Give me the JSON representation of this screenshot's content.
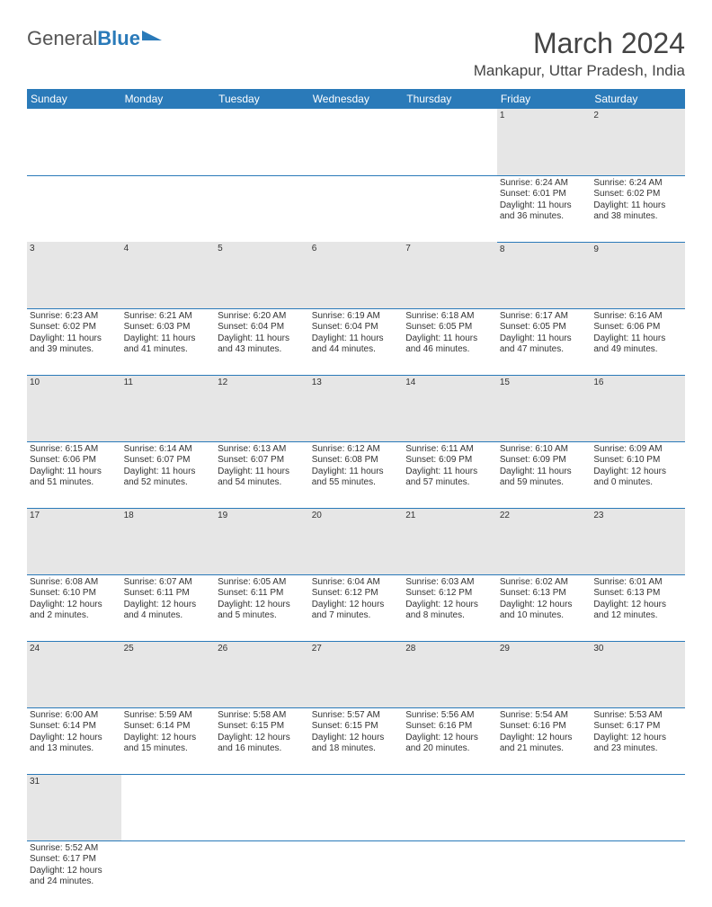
{
  "logo": {
    "text1": "General",
    "text2": "Blue"
  },
  "title": "March 2024",
  "location": "Mankapur, Uttar Pradesh, India",
  "colors": {
    "header_bg": "#2a7ab9",
    "header_fg": "#ffffff",
    "daynum_bg": "#e6e6e6",
    "cell_border": "#2a7ab9",
    "text": "#333333"
  },
  "daysOfWeek": [
    "Sunday",
    "Monday",
    "Tuesday",
    "Wednesday",
    "Thursday",
    "Friday",
    "Saturday"
  ],
  "startWeekday": 5,
  "days": [
    {
      "n": 1,
      "sr": "6:24 AM",
      "ss": "6:01 PM",
      "dl": "11 hours and 36 minutes."
    },
    {
      "n": 2,
      "sr": "6:24 AM",
      "ss": "6:02 PM",
      "dl": "11 hours and 38 minutes."
    },
    {
      "n": 3,
      "sr": "6:23 AM",
      "ss": "6:02 PM",
      "dl": "11 hours and 39 minutes."
    },
    {
      "n": 4,
      "sr": "6:21 AM",
      "ss": "6:03 PM",
      "dl": "11 hours and 41 minutes."
    },
    {
      "n": 5,
      "sr": "6:20 AM",
      "ss": "6:04 PM",
      "dl": "11 hours and 43 minutes."
    },
    {
      "n": 6,
      "sr": "6:19 AM",
      "ss": "6:04 PM",
      "dl": "11 hours and 44 minutes."
    },
    {
      "n": 7,
      "sr": "6:18 AM",
      "ss": "6:05 PM",
      "dl": "11 hours and 46 minutes."
    },
    {
      "n": 8,
      "sr": "6:17 AM",
      "ss": "6:05 PM",
      "dl": "11 hours and 47 minutes."
    },
    {
      "n": 9,
      "sr": "6:16 AM",
      "ss": "6:06 PM",
      "dl": "11 hours and 49 minutes."
    },
    {
      "n": 10,
      "sr": "6:15 AM",
      "ss": "6:06 PM",
      "dl": "11 hours and 51 minutes."
    },
    {
      "n": 11,
      "sr": "6:14 AM",
      "ss": "6:07 PM",
      "dl": "11 hours and 52 minutes."
    },
    {
      "n": 12,
      "sr": "6:13 AM",
      "ss": "6:07 PM",
      "dl": "11 hours and 54 minutes."
    },
    {
      "n": 13,
      "sr": "6:12 AM",
      "ss": "6:08 PM",
      "dl": "11 hours and 55 minutes."
    },
    {
      "n": 14,
      "sr": "6:11 AM",
      "ss": "6:09 PM",
      "dl": "11 hours and 57 minutes."
    },
    {
      "n": 15,
      "sr": "6:10 AM",
      "ss": "6:09 PM",
      "dl": "11 hours and 59 minutes."
    },
    {
      "n": 16,
      "sr": "6:09 AM",
      "ss": "6:10 PM",
      "dl": "12 hours and 0 minutes."
    },
    {
      "n": 17,
      "sr": "6:08 AM",
      "ss": "6:10 PM",
      "dl": "12 hours and 2 minutes."
    },
    {
      "n": 18,
      "sr": "6:07 AM",
      "ss": "6:11 PM",
      "dl": "12 hours and 4 minutes."
    },
    {
      "n": 19,
      "sr": "6:05 AM",
      "ss": "6:11 PM",
      "dl": "12 hours and 5 minutes."
    },
    {
      "n": 20,
      "sr": "6:04 AM",
      "ss": "6:12 PM",
      "dl": "12 hours and 7 minutes."
    },
    {
      "n": 21,
      "sr": "6:03 AM",
      "ss": "6:12 PM",
      "dl": "12 hours and 8 minutes."
    },
    {
      "n": 22,
      "sr": "6:02 AM",
      "ss": "6:13 PM",
      "dl": "12 hours and 10 minutes."
    },
    {
      "n": 23,
      "sr": "6:01 AM",
      "ss": "6:13 PM",
      "dl": "12 hours and 12 minutes."
    },
    {
      "n": 24,
      "sr": "6:00 AM",
      "ss": "6:14 PM",
      "dl": "12 hours and 13 minutes."
    },
    {
      "n": 25,
      "sr": "5:59 AM",
      "ss": "6:14 PM",
      "dl": "12 hours and 15 minutes."
    },
    {
      "n": 26,
      "sr": "5:58 AM",
      "ss": "6:15 PM",
      "dl": "12 hours and 16 minutes."
    },
    {
      "n": 27,
      "sr": "5:57 AM",
      "ss": "6:15 PM",
      "dl": "12 hours and 18 minutes."
    },
    {
      "n": 28,
      "sr": "5:56 AM",
      "ss": "6:16 PM",
      "dl": "12 hours and 20 minutes."
    },
    {
      "n": 29,
      "sr": "5:54 AM",
      "ss": "6:16 PM",
      "dl": "12 hours and 21 minutes."
    },
    {
      "n": 30,
      "sr": "5:53 AM",
      "ss": "6:17 PM",
      "dl": "12 hours and 23 minutes."
    },
    {
      "n": 31,
      "sr": "5:52 AM",
      "ss": "6:17 PM",
      "dl": "12 hours and 24 minutes."
    }
  ],
  "labels": {
    "sunrise": "Sunrise:",
    "sunset": "Sunset:",
    "daylight": "Daylight:"
  }
}
